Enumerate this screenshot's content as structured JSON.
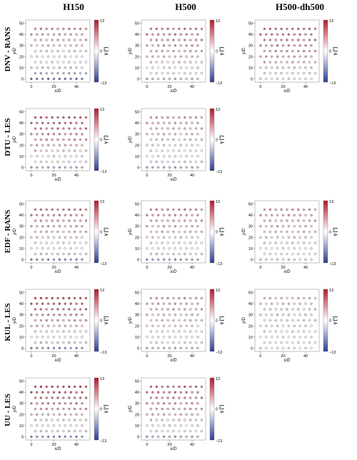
{
  "columns": [
    "H150",
    "H500",
    "H500-dh500"
  ],
  "rows": [
    "DNV - RANS",
    "DTU - LES",
    "EDF - RANS",
    "KUL - LES",
    "UU - LES"
  ],
  "colors": {
    "high": "#b2182b",
    "mid": "#ffffff",
    "low": "#2c3d8f",
    "edge": "#555555"
  },
  "chart_data": {
    "type": "scatter",
    "layout": "5x3 grid of wind-farm maps (third column missing for DTU and UU)",
    "xlabel": "x/D",
    "ylabel": "y/D",
    "xticks": [
      0,
      20,
      40
    ],
    "yticks": [
      0,
      10,
      20,
      30,
      40,
      50
    ],
    "xlim": [
      -5,
      52
    ],
    "ylim": [
      -3,
      53
    ],
    "turbine_rows_y": [
      0,
      5,
      10,
      15,
      20,
      25,
      30,
      35,
      40,
      45
    ],
    "turbine_columns_x": [
      0,
      5,
      10,
      15,
      20,
      25,
      30,
      35,
      40,
      45
    ],
    "stagger_x": 3.5,
    "colorbar": {
      "label": "γ [°]",
      "min": -13,
      "mid": 0,
      "max": 13,
      "tick_labels": [
        "13",
        "0",
        "−13"
      ]
    },
    "panels": [
      {
        "row": "DNV - RANS",
        "column": "H150",
        "gamma_top": 6,
        "gamma_bottom": -9,
        "decay": 0.55
      },
      {
        "row": "DNV - RANS",
        "column": "H500",
        "gamma_top": 7,
        "gamma_bottom": -4,
        "decay": 0.5
      },
      {
        "row": "DNV - RANS",
        "column": "H500-dh500",
        "gamma_top": 8,
        "gamma_bottom": -1,
        "decay": 0.6
      },
      {
        "row": "DTU - LES",
        "column": "H150",
        "gamma_top": 9,
        "gamma_bottom": -5,
        "decay": 0.55
      },
      {
        "row": "DTU - LES",
        "column": "H500",
        "gamma_top": 5,
        "gamma_bottom": -5,
        "decay": 0.5
      },
      {
        "row": "EDF - RANS",
        "column": "H150",
        "gamma_top": 7,
        "gamma_bottom": -7,
        "decay": 0.5
      },
      {
        "row": "EDF - RANS",
        "column": "H500",
        "gamma_top": 6,
        "gamma_bottom": -6,
        "decay": 0.5
      },
      {
        "row": "EDF - RANS",
        "column": "H500-dh500",
        "gamma_top": 5,
        "gamma_bottom": -2,
        "decay": 0.6
      },
      {
        "row": "KUL - LES",
        "column": "H150",
        "gamma_top": 10,
        "gamma_bottom": -7,
        "decay": 0.6
      },
      {
        "row": "KUL - LES",
        "column": "H500",
        "gamma_top": 5,
        "gamma_bottom": -4,
        "decay": 0.5
      },
      {
        "row": "KUL - LES",
        "column": "H500-dh500",
        "gamma_top": 3,
        "gamma_bottom": -1,
        "decay": 0.6
      },
      {
        "row": "UU - LES",
        "column": "H150",
        "gamma_top": 10,
        "gamma_bottom": -7,
        "decay": 0.55
      },
      {
        "row": "UU - LES",
        "column": "H500",
        "gamma_top": 8,
        "gamma_bottom": -5,
        "decay": 0.5
      }
    ]
  }
}
